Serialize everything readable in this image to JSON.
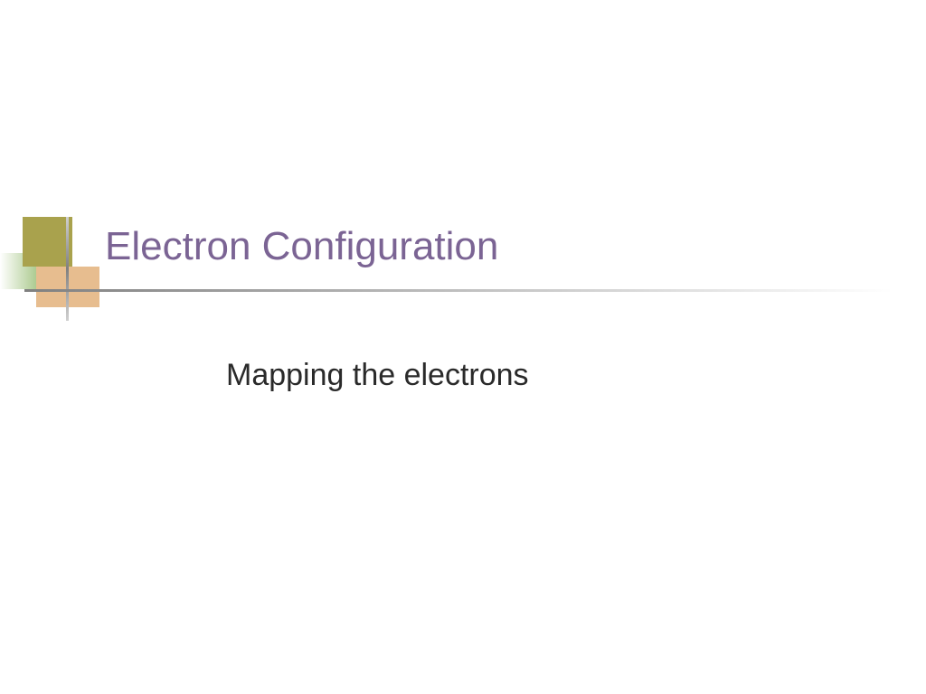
{
  "slide": {
    "title": "Electron Configuration",
    "subtitle": "Mapping the electrons"
  },
  "styling": {
    "background_color": "#ffffff",
    "title_color": "#7b6494",
    "title_fontsize": 44,
    "subtitle_color": "#2a2a2a",
    "subtitle_fontsize": 34,
    "decoration": {
      "square_olive_color": "#a9a24d",
      "square_green_gradient_start": "#ffffff",
      "square_green_gradient_end": "#8fb868",
      "square_peach_color": "#e7bd8f",
      "vertical_line_gradient_top": "#d0d0d0",
      "vertical_line_gradient_mid": "#808080",
      "vertical_line_gradient_bottom": "#d0d0d0",
      "horizontal_line_gradient_left": "#808080",
      "horizontal_line_gradient_right": "#ffffff"
    }
  }
}
